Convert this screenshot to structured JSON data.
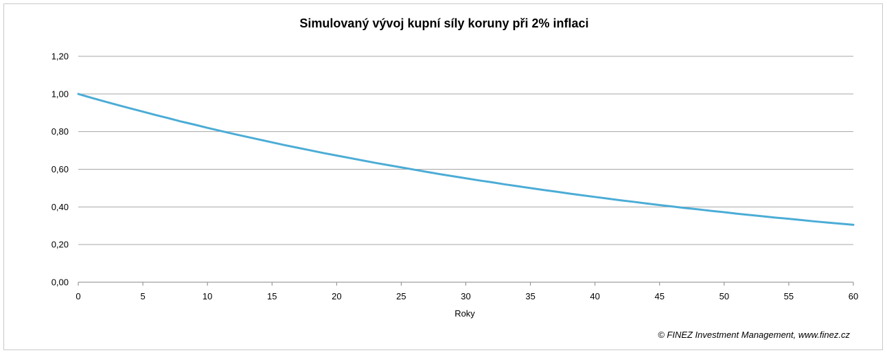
{
  "chart_data": {
    "type": "line",
    "title": "Simulovaný vývoj kupní síly koruny při 2% inflaci",
    "xlabel": "Roky",
    "ylabel": "",
    "xlim": [
      0,
      60
    ],
    "ylim": [
      0,
      1.2
    ],
    "x_ticks": [
      "0",
      "5",
      "10",
      "15",
      "20",
      "25",
      "30",
      "35",
      "40",
      "45",
      "50",
      "55",
      "60"
    ],
    "y_ticks": [
      "0,00",
      "0,20",
      "0,40",
      "0,60",
      "0,80",
      "1,00",
      "1,20"
    ],
    "grid": "horizontal",
    "legend": "none",
    "series": [
      {
        "color": "#4bacd6",
        "x": [
          0,
          1,
          2,
          3,
          4,
          5,
          6,
          7,
          8,
          9,
          10,
          11,
          12,
          13,
          14,
          15,
          16,
          17,
          18,
          19,
          20,
          21,
          22,
          23,
          24,
          25,
          26,
          27,
          28,
          29,
          30,
          31,
          32,
          33,
          34,
          35,
          36,
          37,
          38,
          39,
          40,
          41,
          42,
          43,
          44,
          45,
          46,
          47,
          48,
          49,
          50,
          51,
          52,
          53,
          54,
          55,
          56,
          57,
          58,
          59,
          60
        ],
        "values": [
          1.0,
          0.98,
          0.961,
          0.942,
          0.924,
          0.906,
          0.888,
          0.871,
          0.853,
          0.837,
          0.82,
          0.804,
          0.788,
          0.773,
          0.758,
          0.743,
          0.728,
          0.714,
          0.7,
          0.686,
          0.673,
          0.66,
          0.647,
          0.634,
          0.622,
          0.61,
          0.598,
          0.586,
          0.574,
          0.563,
          0.552,
          0.541,
          0.531,
          0.52,
          0.51,
          0.5,
          0.49,
          0.481,
          0.471,
          0.462,
          0.453,
          0.444,
          0.435,
          0.427,
          0.418,
          0.41,
          0.402,
          0.394,
          0.387,
          0.379,
          0.372,
          0.364,
          0.357,
          0.35,
          0.343,
          0.337,
          0.33,
          0.323,
          0.317,
          0.311,
          0.305
        ]
      }
    ]
  },
  "credit": "© FINEZ Investment Management, www.finez.cz"
}
